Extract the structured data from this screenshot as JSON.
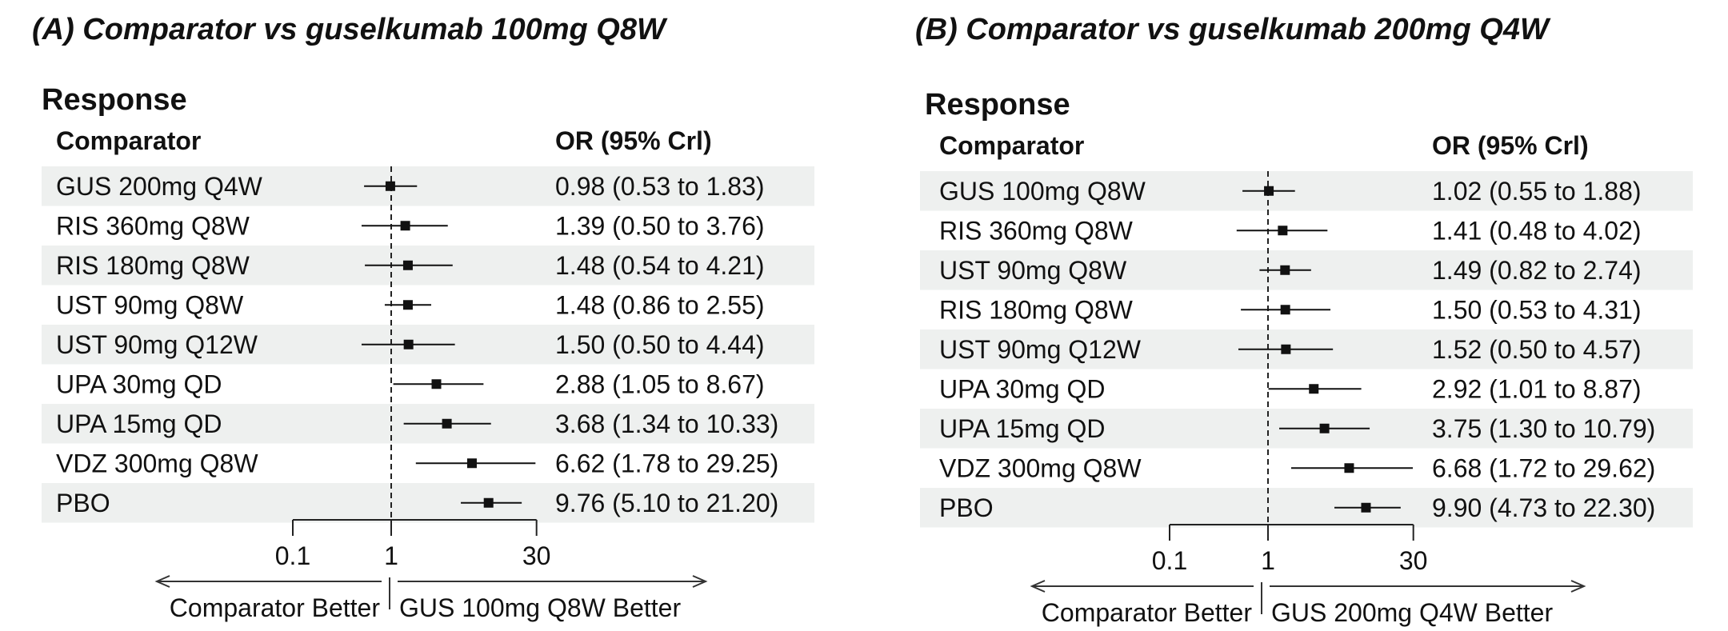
{
  "chart_data": [
    {
      "type": "forest",
      "title": "(A) Comparator vs guselkumab 100mg Q8W",
      "section": "Response",
      "col_comparator": "Comparator",
      "col_estimate": "OR (95% Crl)",
      "x_scale": "log",
      "xlim": [
        0.1,
        30
      ],
      "xticks": [
        "0.1",
        "1",
        "30"
      ],
      "reference": 1,
      "left_label": "Comparator Better",
      "right_label": "GUS 100mg Q8W Better",
      "rows": [
        {
          "label": "GUS 200mg Q4W",
          "or": 0.98,
          "lo": 0.53,
          "hi": 1.83,
          "text": "0.98 (0.53 to 1.83)"
        },
        {
          "label": "RIS 360mg Q8W",
          "or": 1.39,
          "lo": 0.5,
          "hi": 3.76,
          "text": "1.39 (0.50 to 3.76)"
        },
        {
          "label": "RIS 180mg Q8W",
          "or": 1.48,
          "lo": 0.54,
          "hi": 4.21,
          "text": "1.48 (0.54 to 4.21)"
        },
        {
          "label": "UST 90mg Q8W",
          "or": 1.48,
          "lo": 0.86,
          "hi": 2.55,
          "text": "1.48 (0.86 to 2.55)"
        },
        {
          "label": "UST 90mg Q12W",
          "or": 1.5,
          "lo": 0.5,
          "hi": 4.44,
          "text": "1.50 (0.50 to 4.44)"
        },
        {
          "label": "UPA 30mg QD",
          "or": 2.88,
          "lo": 1.05,
          "hi": 8.67,
          "text": "2.88 (1.05 to 8.67)"
        },
        {
          "label": "UPA 15mg QD",
          "or": 3.68,
          "lo": 1.34,
          "hi": 10.33,
          "text": "3.68 (1.34 to 10.33)"
        },
        {
          "label": "VDZ 300mg Q8W",
          "or": 6.62,
          "lo": 1.78,
          "hi": 29.25,
          "text": "6.62 (1.78 to 29.25)"
        },
        {
          "label": "PBO",
          "or": 9.76,
          "lo": 5.1,
          "hi": 21.2,
          "text": "9.76 (5.10 to 21.20)"
        }
      ]
    },
    {
      "type": "forest",
      "title": "(B) Comparator vs guselkumab 200mg Q4W",
      "section": "Response",
      "col_comparator": "Comparator",
      "col_estimate": "OR (95% Crl)",
      "x_scale": "log",
      "xlim": [
        0.1,
        30
      ],
      "xticks": [
        "0.1",
        "1",
        "30"
      ],
      "reference": 1,
      "left_label": "Comparator Better",
      "right_label": "GUS 200mg Q4W Better",
      "rows": [
        {
          "label": "GUS 100mg Q8W",
          "or": 1.02,
          "lo": 0.55,
          "hi": 1.88,
          "text": "1.02 (0.55 to 1.88)"
        },
        {
          "label": "RIS 360mg Q8W",
          "or": 1.41,
          "lo": 0.48,
          "hi": 4.02,
          "text": "1.41 (0.48 to 4.02)"
        },
        {
          "label": "UST 90mg Q8W",
          "or": 1.49,
          "lo": 0.82,
          "hi": 2.74,
          "text": "1.49 (0.82 to 2.74)"
        },
        {
          "label": "RIS 180mg Q8W",
          "or": 1.5,
          "lo": 0.53,
          "hi": 4.31,
          "text": "1.50 (0.53 to 4.31)"
        },
        {
          "label": "UST 90mg Q12W",
          "or": 1.52,
          "lo": 0.5,
          "hi": 4.57,
          "text": "1.52 (0.50 to 4.57)"
        },
        {
          "label": "UPA 30mg QD",
          "or": 2.92,
          "lo": 1.01,
          "hi": 8.87,
          "text": "2.92 (1.01 to 8.87)"
        },
        {
          "label": "UPA 15mg QD",
          "or": 3.75,
          "lo": 1.3,
          "hi": 10.79,
          "text": "3.75 (1.30 to 10.79)"
        },
        {
          "label": "VDZ 300mg Q8W",
          "or": 6.68,
          "lo": 1.72,
          "hi": 29.62,
          "text": "6.68 (1.72 to 29.62)"
        },
        {
          "label": "PBO",
          "or": 9.9,
          "lo": 4.73,
          "hi": 22.3,
          "text": "9.90 (4.73 to 22.30)"
        }
      ]
    }
  ]
}
